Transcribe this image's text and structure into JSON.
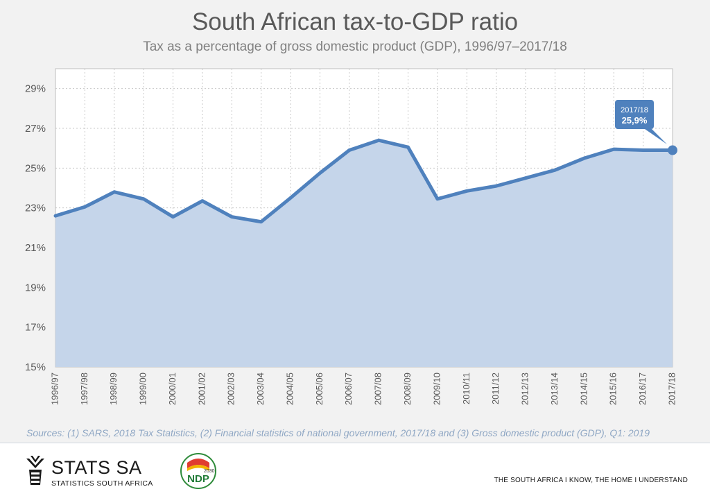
{
  "chart_data": {
    "type": "area",
    "title": "South African tax-to-GDP ratio",
    "subtitle": "Tax as a percentage of gross domestic product (GDP), 1996/97–2017/18",
    "categories": [
      "1996/97",
      "1997/98",
      "1998/99",
      "1999/00",
      "2000/01",
      "2001/02",
      "2002/03",
      "2003/04",
      "2004/05",
      "2005/06",
      "2006/07",
      "2007/08",
      "2008/09",
      "2009/10",
      "2010/11",
      "2011/12",
      "2012/13",
      "2013/14",
      "2014/15",
      "2015/16",
      "2016/17",
      "2017/18"
    ],
    "values": [
      22.6,
      23.05,
      23.8,
      23.45,
      22.55,
      23.35,
      22.55,
      22.3,
      23.5,
      24.75,
      25.9,
      26.4,
      26.05,
      23.45,
      23.85,
      24.1,
      24.5,
      24.9,
      25.5,
      25.95,
      25.9,
      25.9
    ],
    "ylim": [
      15,
      30
    ],
    "yticks": [
      "15%",
      "17%",
      "19%",
      "21%",
      "23%",
      "25%",
      "27%",
      "29%"
    ],
    "ytick_values": [
      15,
      17,
      19,
      21,
      23,
      25,
      27,
      29
    ],
    "grid": "dotted",
    "callout": {
      "label": "2017/18",
      "value": "25,9%"
    },
    "line_color": "#4f81bd",
    "fill_color": "#c5d5ea"
  },
  "sources": "Sources: (1)  SARS, 2018 Tax Statistics, (2) Financial statistics of national government, 2017/18 and (3) Gross domestic product (GDP), Q1: 2019",
  "footer": {
    "brand": "STATS SA",
    "brand_sub": "STATISTICS SOUTH AFRICA",
    "ndp_text": "NDP",
    "ndp_year": "2030",
    "slogan": "THE SOUTH AFRICA I KNOW, THE HOME I UNDERSTAND"
  }
}
